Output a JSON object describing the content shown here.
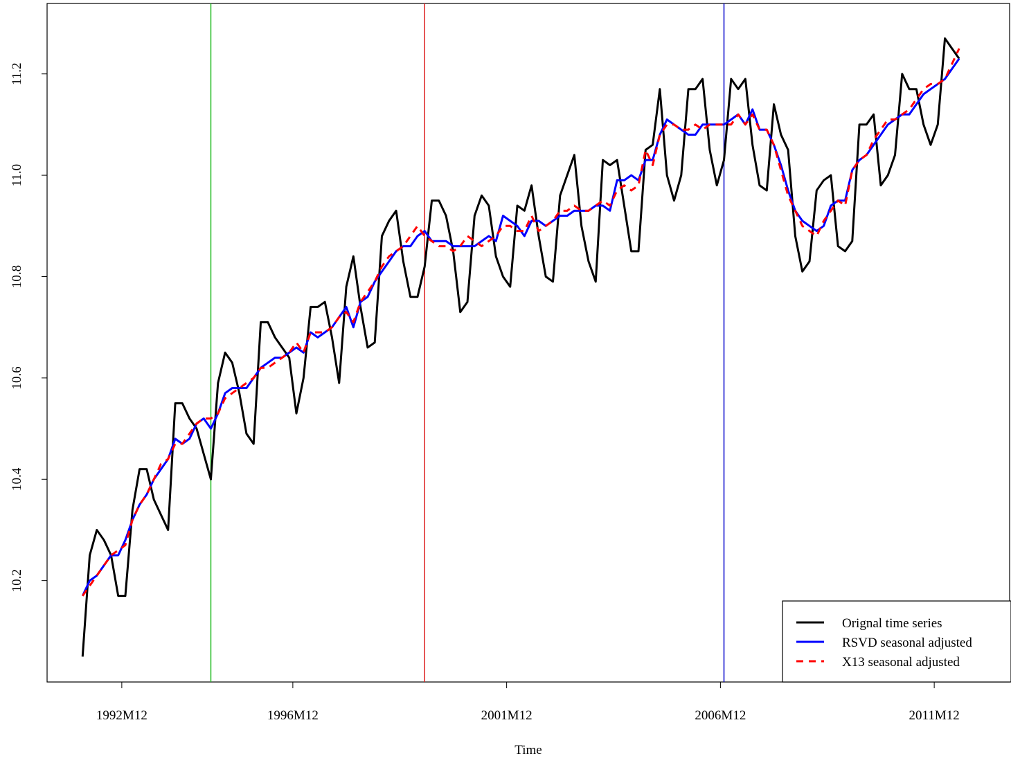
{
  "chart_data": {
    "type": "line",
    "xlabel": "Time",
    "x": [
      1992,
      1992.167,
      1992.333,
      1992.5,
      1992.667,
      1992.833,
      1993,
      1993.167,
      1993.333,
      1993.5,
      1993.667,
      1993.833,
      1994,
      1994.167,
      1994.333,
      1994.5,
      1994.667,
      1994.833,
      1995,
      1995.167,
      1995.333,
      1995.5,
      1995.667,
      1995.833,
      1996,
      1996.167,
      1996.333,
      1996.5,
      1996.667,
      1996.833,
      1997,
      1997.167,
      1997.333,
      1997.5,
      1997.667,
      1997.833,
      1998,
      1998.167,
      1998.333,
      1998.5,
      1998.667,
      1998.833,
      1999,
      1999.167,
      1999.333,
      1999.5,
      1999.667,
      1999.833,
      2000,
      2000.167,
      2000.333,
      2000.5,
      2000.667,
      2000.833,
      2001,
      2001.167,
      2001.333,
      2001.5,
      2001.667,
      2001.833,
      2002,
      2002.167,
      2002.333,
      2002.5,
      2002.667,
      2002.833,
      2003,
      2003.167,
      2003.333,
      2003.5,
      2003.667,
      2003.833,
      2004,
      2004.167,
      2004.333,
      2004.5,
      2004.667,
      2004.833,
      2005,
      2005.167,
      2005.333,
      2005.5,
      2005.667,
      2005.833,
      2006,
      2006.167,
      2006.333,
      2006.5,
      2006.667,
      2006.833,
      2007,
      2007.167,
      2007.333,
      2007.5,
      2007.667,
      2007.833,
      2008,
      2008.167,
      2008.333,
      2008.5,
      2008.667,
      2008.833,
      2009,
      2009.167,
      2009.333,
      2009.5,
      2009.667,
      2009.833,
      2010,
      2010.167,
      2010.333,
      2010.5,
      2010.667,
      2010.833,
      2011,
      2011.167,
      2011.333,
      2011.5,
      2011.667,
      2011.833,
      2012,
      2012.167,
      2012.333,
      2012.5
    ],
    "series": [
      {
        "name": "Orignal time series",
        "color": "#000000",
        "dash": false,
        "values": [
          10.05,
          10.25,
          10.3,
          10.28,
          10.25,
          10.17,
          10.17,
          10.34,
          10.42,
          10.42,
          10.36,
          10.33,
          10.3,
          10.55,
          10.55,
          10.52,
          10.5,
          10.45,
          10.4,
          10.59,
          10.65,
          10.63,
          10.57,
          10.49,
          10.47,
          10.71,
          10.71,
          10.68,
          10.66,
          10.64,
          10.53,
          10.6,
          10.74,
          10.74,
          10.75,
          10.68,
          10.59,
          10.78,
          10.84,
          10.74,
          10.66,
          10.67,
          10.88,
          10.91,
          10.93,
          10.83,
          10.76,
          10.76,
          10.82,
          10.95,
          10.95,
          10.92,
          10.85,
          10.73,
          10.75,
          10.92,
          10.96,
          10.94,
          10.84,
          10.8,
          10.78,
          10.94,
          10.93,
          10.98,
          10.88,
          10.8,
          10.79,
          10.96,
          11.0,
          11.04,
          10.9,
          10.83,
          10.79,
          11.03,
          11.02,
          11.03,
          10.94,
          10.85,
          10.85,
          11.05,
          11.06,
          11.17,
          11.0,
          10.95,
          11.0,
          11.17,
          11.17,
          11.19,
          11.05,
          10.98,
          11.03,
          11.19,
          11.17,
          11.19,
          11.06,
          10.98,
          10.97,
          11.14,
          11.08,
          11.05,
          10.88,
          10.81,
          10.83,
          10.97,
          10.99,
          11.0,
          10.86,
          10.85,
          10.87,
          11.1,
          11.1,
          11.12,
          10.98,
          11.0,
          11.04,
          11.2,
          11.17,
          11.17,
          11.1,
          11.06,
          11.1,
          11.27,
          11.25,
          11.23
        ]
      },
      {
        "name": "RSVD seasonal adjusted",
        "color": "#0000ff",
        "dash": false,
        "values": [
          10.17,
          10.2,
          10.21,
          10.23,
          10.25,
          10.25,
          10.28,
          10.32,
          10.35,
          10.37,
          10.4,
          10.42,
          10.44,
          10.48,
          10.47,
          10.48,
          10.51,
          10.52,
          10.5,
          10.53,
          10.57,
          10.58,
          10.58,
          10.58,
          10.6,
          10.62,
          10.63,
          10.64,
          10.64,
          10.65,
          10.66,
          10.65,
          10.69,
          10.68,
          10.69,
          10.7,
          10.72,
          10.74,
          10.7,
          10.75,
          10.76,
          10.79,
          10.81,
          10.83,
          10.85,
          10.86,
          10.86,
          10.88,
          10.89,
          10.87,
          10.87,
          10.87,
          10.86,
          10.86,
          10.86,
          10.86,
          10.87,
          10.88,
          10.87,
          10.92,
          10.91,
          10.9,
          10.88,
          10.91,
          10.91,
          10.9,
          10.91,
          10.92,
          10.92,
          10.93,
          10.93,
          10.93,
          10.94,
          10.94,
          10.93,
          10.99,
          10.99,
          11.0,
          10.99,
          11.03,
          11.03,
          11.08,
          11.11,
          11.1,
          11.09,
          11.08,
          11.08,
          11.1,
          11.1,
          11.1,
          11.1,
          11.11,
          11.12,
          11.1,
          11.13,
          11.09,
          11.09,
          11.06,
          11.02,
          10.97,
          10.93,
          10.91,
          10.9,
          10.89,
          10.9,
          10.94,
          10.95,
          10.95,
          11.01,
          11.03,
          11.04,
          11.06,
          11.08,
          11.1,
          11.11,
          11.12,
          11.12,
          11.14,
          11.16,
          11.17,
          11.18,
          11.19,
          11.21,
          11.23
        ]
      },
      {
        "name": "X13 seasonal adjusted",
        "color": "#ff0000",
        "dash": true,
        "values": [
          10.17,
          10.19,
          10.21,
          10.23,
          10.25,
          10.26,
          10.27,
          10.32,
          10.35,
          10.37,
          10.4,
          10.43,
          10.44,
          10.47,
          10.47,
          10.49,
          10.51,
          10.52,
          10.52,
          10.53,
          10.56,
          10.57,
          10.58,
          10.59,
          10.6,
          10.62,
          10.62,
          10.63,
          10.64,
          10.65,
          10.67,
          10.65,
          10.69,
          10.69,
          10.69,
          10.7,
          10.72,
          10.73,
          10.71,
          10.75,
          10.77,
          10.79,
          10.82,
          10.84,
          10.85,
          10.86,
          10.88,
          10.9,
          10.88,
          10.87,
          10.86,
          10.86,
          10.85,
          10.86,
          10.88,
          10.87,
          10.86,
          10.87,
          10.88,
          10.9,
          10.9,
          10.89,
          10.89,
          10.92,
          10.89,
          10.9,
          10.91,
          10.93,
          10.93,
          10.94,
          10.93,
          10.93,
          10.94,
          10.95,
          10.94,
          10.97,
          10.98,
          10.97,
          10.98,
          11.05,
          11.02,
          11.08,
          11.1,
          11.1,
          11.09,
          11.09,
          11.1,
          11.09,
          11.1,
          11.1,
          11.1,
          11.1,
          11.12,
          11.1,
          11.12,
          11.09,
          11.09,
          11.06,
          11.01,
          10.96,
          10.93,
          10.9,
          10.89,
          10.88,
          10.91,
          10.93,
          10.95,
          10.94,
          11.01,
          11.03,
          11.04,
          11.07,
          11.09,
          11.11,
          11.11,
          11.12,
          11.13,
          11.15,
          11.17,
          11.18,
          11.18,
          11.19,
          11.22,
          11.25
        ]
      }
    ],
    "vlines": [
      {
        "x": 1995.0,
        "color": "#22bb22"
      },
      {
        "x": 2000.0,
        "color": "#dd2222"
      },
      {
        "x": 2007.0,
        "color": "#0000cc"
      }
    ],
    "xlim": [
      1991.17,
      2013.68
    ],
    "ylim": [
      10.0,
      11.339
    ],
    "xticks": [
      {
        "value": 1992.917,
        "label": "1992M12"
      },
      {
        "value": 1996.917,
        "label": "1996M12"
      },
      {
        "value": 2001.917,
        "label": "2001M12"
      },
      {
        "value": 2006.917,
        "label": "2006M12"
      },
      {
        "value": 2011.917,
        "label": "2011M12"
      }
    ],
    "yticks": [
      10.2,
      10.4,
      10.6,
      {
        "value": 11,
        "label": "11.0"
      },
      10.8,
      11.2
    ],
    "legend": "bottom-right",
    "grid": false
  }
}
